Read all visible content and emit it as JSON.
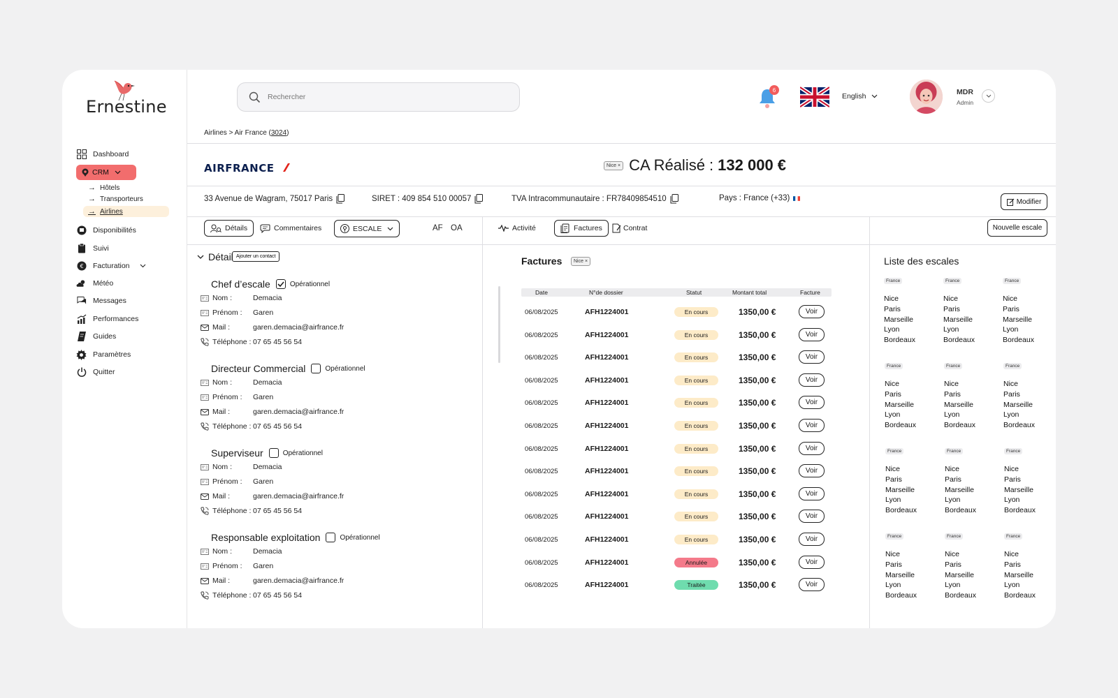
{
  "brand": {
    "name": "Ernestine"
  },
  "sidebar": {
    "items": [
      {
        "label": "Dashboard",
        "icon": "dashboard-icon"
      },
      {
        "label": "CRM",
        "icon": "crm-icon"
      },
      {
        "label": "Disponibilités",
        "icon": "availability-icon"
      },
      {
        "label": "Suivi",
        "icon": "clipboard-icon"
      },
      {
        "label": "Facturation",
        "icon": "billing-icon"
      },
      {
        "label": "Météo",
        "icon": "weather-icon"
      },
      {
        "label": "Messages",
        "icon": "messages-icon"
      },
      {
        "label": "Performances",
        "icon": "performance-icon"
      },
      {
        "label": "Guides",
        "icon": "guides-icon"
      },
      {
        "label": "Paramètres",
        "icon": "gear-icon"
      },
      {
        "label": "Quitter",
        "icon": "power-icon"
      }
    ],
    "crm_sub": [
      "Hôtels",
      "Transporteurs",
      "Airlines"
    ],
    "crm_color": "#f26d6d",
    "active_sub_bg": "#fdf0dc"
  },
  "topbar": {
    "search_placeholder": "Rechercher",
    "notification_count": "6",
    "language": "English",
    "user_name": "MDR",
    "user_role": "Admin"
  },
  "breadcrumb": {
    "path": "Airlines > Air France (",
    "count": "3024",
    "close": ")"
  },
  "company": {
    "name_logo": "AIRFRANCE",
    "ca_tag": "Nice",
    "ca_label": "CA Réalisé :",
    "ca_value": "132 000 €",
    "address": "33 Avenue de Wagram, 75017 Paris",
    "siret": "SIRET : 409 854 510 00057",
    "tva": "TVA Intracommunautaire : FR78409854510",
    "pays": "Pays : France (+33)",
    "modify_label": "Modifier"
  },
  "left_tabs": {
    "details": "Détails",
    "comments": "Commentaires",
    "escale": "ESCALE",
    "af": "AF",
    "oa": "OA"
  },
  "mid_tabs": {
    "activity": "Activité",
    "invoices": "Factures",
    "contract": "Contrat"
  },
  "new_escale": "Nouvelle escale",
  "details": {
    "title": "Détails",
    "add_contact": "Ajouter un contact",
    "operational_label": "Opérationnel",
    "field_labels": {
      "nom": "Nom :",
      "prenom": "Prénom :",
      "mail": "Mail :",
      "tel": "Téléphone :"
    },
    "contacts": [
      {
        "role": "Chef d’escale",
        "operational": true,
        "nom": "Demacia",
        "prenom": "Garen",
        "mail": "garen.demacia@airfrance.fr",
        "tel": "07 65 45 56 54"
      },
      {
        "role": "Directeur Commercial",
        "operational": false,
        "nom": "Demacia",
        "prenom": "Garen",
        "mail": "garen.demacia@airfrance.fr",
        "tel": "07 65 45 56 54"
      },
      {
        "role": "Superviseur",
        "operational": false,
        "nom": "Demacia",
        "prenom": "Garen",
        "mail": "garen.demacia@airfrance.fr",
        "tel": "07 65 45 56 54"
      },
      {
        "role": "Responsable exploitation",
        "operational": false,
        "nom": "Demacia",
        "prenom": "Garen",
        "mail": "garen.demacia@airfrance.fr",
        "tel": "07 65 45 56 54"
      }
    ]
  },
  "invoices": {
    "title": "Factures",
    "tag": "Nice",
    "columns": [
      "Date",
      "N°de dossier",
      "Statut",
      "Montant total",
      "Facture"
    ],
    "status_colors": {
      "En cours": "#fdebc8",
      "Annulée": "#f47a8a",
      "Traitée": "#6fdcae"
    },
    "rows": [
      {
        "date": "06/08/2025",
        "dossier": "AFH1224001",
        "statut": "En cours",
        "montant": "1350,00 €",
        "action": "Voir"
      },
      {
        "date": "06/08/2025",
        "dossier": "AFH1224001",
        "statut": "En cours",
        "montant": "1350,00 €",
        "action": "Voir"
      },
      {
        "date": "06/08/2025",
        "dossier": "AFH1224001",
        "statut": "En cours",
        "montant": "1350,00 €",
        "action": "Voir"
      },
      {
        "date": "06/08/2025",
        "dossier": "AFH1224001",
        "statut": "En cours",
        "montant": "1350,00 €",
        "action": "Voir"
      },
      {
        "date": "06/08/2025",
        "dossier": "AFH1224001",
        "statut": "En cours",
        "montant": "1350,00 €",
        "action": "Voir"
      },
      {
        "date": "06/08/2025",
        "dossier": "AFH1224001",
        "statut": "En cours",
        "montant": "1350,00 €",
        "action": "Voir"
      },
      {
        "date": "06/08/2025",
        "dossier": "AFH1224001",
        "statut": "En cours",
        "montant": "1350,00 €",
        "action": "Voir"
      },
      {
        "date": "06/08/2025",
        "dossier": "AFH1224001",
        "statut": "En cours",
        "montant": "1350,00 €",
        "action": "Voir"
      },
      {
        "date": "06/08/2025",
        "dossier": "AFH1224001",
        "statut": "En cours",
        "montant": "1350,00 €",
        "action": "Voir"
      },
      {
        "date": "06/08/2025",
        "dossier": "AFH1224001",
        "statut": "En cours",
        "montant": "1350,00 €",
        "action": "Voir"
      },
      {
        "date": "06/08/2025",
        "dossier": "AFH1224001",
        "statut": "En cours",
        "montant": "1350,00 €",
        "action": "Voir"
      },
      {
        "date": "06/08/2025",
        "dossier": "AFH1224001",
        "statut": "Annulée",
        "montant": "1350,00 €",
        "action": "Voir"
      },
      {
        "date": "06/08/2025",
        "dossier": "AFH1224001",
        "statut": "Traitée",
        "montant": "1350,00 €",
        "action": "Voir"
      }
    ]
  },
  "escales": {
    "title": "Liste des escales",
    "groups": [
      {
        "country": "France",
        "cities": [
          "Nice",
          "Paris",
          "Marseille",
          "Lyon",
          "Bordeaux"
        ]
      },
      {
        "country": "France",
        "cities": [
          "Nice",
          "Paris",
          "Marseille",
          "Lyon",
          "Bordeaux"
        ]
      },
      {
        "country": "France",
        "cities": [
          "Nice",
          "Paris",
          "Marseille",
          "Lyon",
          "Bordeaux"
        ]
      },
      {
        "country": "France",
        "cities": [
          "Nice",
          "Paris",
          "Marseille",
          "Lyon",
          "Bordeaux"
        ]
      },
      {
        "country": "France",
        "cities": [
          "Nice",
          "Paris",
          "Marseille",
          "Lyon",
          "Bordeaux"
        ]
      },
      {
        "country": "France",
        "cities": [
          "Nice",
          "Paris",
          "Marseille",
          "Lyon",
          "Bordeaux"
        ]
      },
      {
        "country": "France",
        "cities": [
          "Nice",
          "Paris",
          "Marseille",
          "Lyon",
          "Bordeaux"
        ]
      },
      {
        "country": "France",
        "cities": [
          "Nice",
          "Paris",
          "Marseille",
          "Lyon",
          "Bordeaux"
        ]
      },
      {
        "country": "France",
        "cities": [
          "Nice",
          "Paris",
          "Marseille",
          "Lyon",
          "Bordeaux"
        ]
      },
      {
        "country": "France",
        "cities": [
          "Nice",
          "Paris",
          "Marseille",
          "Lyon",
          "Bordeaux"
        ]
      },
      {
        "country": "France",
        "cities": [
          "Nice",
          "Paris",
          "Marseille",
          "Lyon",
          "Bordeaux"
        ]
      },
      {
        "country": "France",
        "cities": [
          "Nice",
          "Paris",
          "Marseille",
          "Lyon",
          "Bordeaux"
        ]
      }
    ]
  }
}
